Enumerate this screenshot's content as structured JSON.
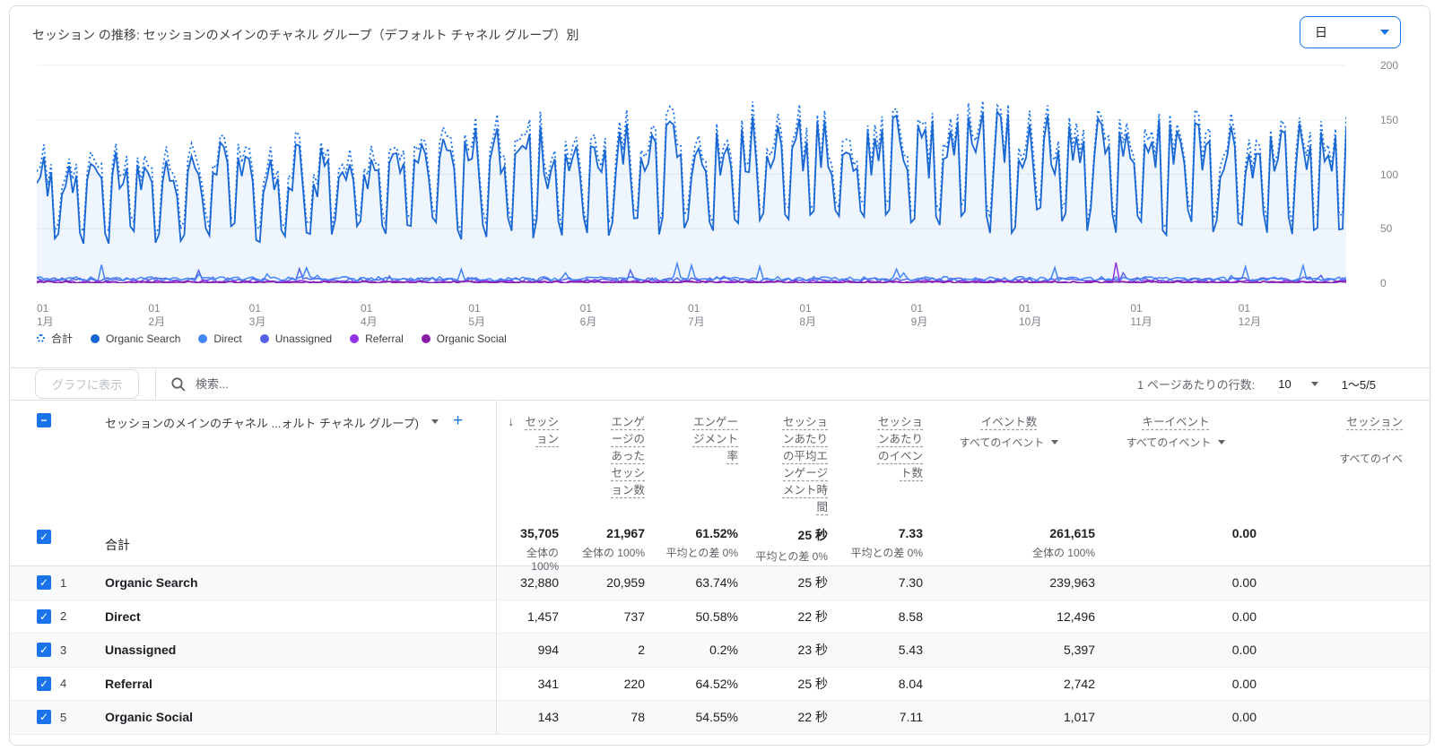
{
  "header": {
    "title": "セッション の推移: セッションのメインのチャネル グループ（デフォルト チャネル グループ）別",
    "granularity_value": "日"
  },
  "chart_data": {
    "type": "line",
    "title": "セッション の推移: セッションのメインのチャネル グループ（デフォルト チャネル グループ）別",
    "ylim": [
      0,
      200
    ],
    "y_ticks": [
      200,
      150,
      100,
      50,
      0
    ],
    "x_ticks": [
      {
        "day": "01",
        "month": "1月"
      },
      {
        "day": "01",
        "month": "2月"
      },
      {
        "day": "01",
        "month": "3月"
      },
      {
        "day": "01",
        "month": "4月"
      },
      {
        "day": "01",
        "month": "5月"
      },
      {
        "day": "01",
        "month": "6月"
      },
      {
        "day": "01",
        "month": "7月"
      },
      {
        "day": "01",
        "month": "8月"
      },
      {
        "day": "01",
        "month": "9月"
      },
      {
        "day": "01",
        "month": "10月"
      },
      {
        "day": "01",
        "month": "11月"
      },
      {
        "day": "01",
        "month": "12月"
      }
    ],
    "x_month_start_days": [
      0,
      31,
      59,
      90,
      120,
      151,
      181,
      212,
      243,
      273,
      304,
      334
    ],
    "series": [
      {
        "name": "合計",
        "color": "#1a73e8",
        "style": "dotted"
      },
      {
        "name": "Organic Search",
        "color": "#1967d2",
        "style": "solid",
        "area_fill": "rgba(26,115,232,0.07)"
      },
      {
        "name": "Direct",
        "color": "#4285f4",
        "style": "solid"
      },
      {
        "name": "Unassigned",
        "color": "#5561e8",
        "style": "solid"
      },
      {
        "name": "Referral",
        "color": "#9334e6",
        "style": "solid"
      },
      {
        "name": "Organic Social",
        "color": "#8a1ca8",
        "style": "solid"
      }
    ],
    "gen": {
      "seed": 9,
      "days": 365,
      "start_dow": 0,
      "weekday_min": 78,
      "weekday_max": 128,
      "weekend_min": 38,
      "weekend_max": 60,
      "season_amp": 0.18,
      "total_offset_min": 5,
      "total_offset_max": 14,
      "direct_spike_day": 178,
      "direct_spike_val": 18,
      "referral_spike_day": 300,
      "referral_spike_val": 19
    }
  },
  "legend": [
    {
      "label": "合計",
      "type": "dotted",
      "color": "#1a73e8"
    },
    {
      "label": "Organic Search",
      "type": "solid",
      "color": "#1967d2"
    },
    {
      "label": "Direct",
      "type": "solid",
      "color": "#4285f4"
    },
    {
      "label": "Unassigned",
      "type": "solid",
      "color": "#5561e8"
    },
    {
      "label": "Referral",
      "type": "solid",
      "color": "#9334e6"
    },
    {
      "label": "Organic Social",
      "type": "solid",
      "color": "#8a1ca8"
    }
  ],
  "controls": {
    "show_on_chart": "グラフに表示",
    "search_placeholder": "検索...",
    "rows_per_page_label": "1 ページあたりの行数:",
    "rows_per_page": "10",
    "range": "1～5/5"
  },
  "table": {
    "dimension_header": "セッションのメインのチャネル ...ォルト チャネル グループ)",
    "columns": [
      {
        "label": "セッション",
        "align": "right",
        "sortable": true
      },
      {
        "label": "エンゲージのあったセッション数",
        "align": "right"
      },
      {
        "label": "エンゲージメント率",
        "align": "right"
      },
      {
        "label": "セッションあたりの平均エンゲージメント時間",
        "align": "right"
      },
      {
        "label": "セッションあたりのイベント数",
        "align": "right"
      },
      {
        "label": "イベント数",
        "sub": "すべてのイベント",
        "caret": true,
        "align": "center"
      },
      {
        "label": "キーイベント",
        "sub": "すべてのイベント",
        "caret": true,
        "align": "center"
      },
      {
        "label": "セッション",
        "sub": "すべてのイベ",
        "align": "last"
      }
    ],
    "totals": {
      "label": "合計",
      "cells": [
        {
          "v": "35,705",
          "s": "全体の 100%"
        },
        {
          "v": "21,967",
          "s": "全体の 100%"
        },
        {
          "v": "61.52%",
          "s": "平均との差 0%"
        },
        {
          "v": "25 秒",
          "s": "平均との差 0%"
        },
        {
          "v": "7.33",
          "s": "平均との差 0%"
        },
        {
          "v": "261,615",
          "s": "全体の 100%"
        },
        {
          "v": "0.00",
          "s": ""
        },
        {
          "v": "",
          "s": ""
        }
      ]
    },
    "rows": [
      {
        "num": "1",
        "name": "Organic Search",
        "cells": [
          "32,880",
          "20,959",
          "63.74%",
          "25 秒",
          "7.30",
          "239,963",
          "0.00",
          ""
        ]
      },
      {
        "num": "2",
        "name": "Direct",
        "cells": [
          "1,457",
          "737",
          "50.58%",
          "22 秒",
          "8.58",
          "12,496",
          "0.00",
          ""
        ]
      },
      {
        "num": "3",
        "name": "Unassigned",
        "cells": [
          "994",
          "2",
          "0.2%",
          "23 秒",
          "5.43",
          "5,397",
          "0.00",
          ""
        ]
      },
      {
        "num": "4",
        "name": "Referral",
        "cells": [
          "341",
          "220",
          "64.52%",
          "25 秒",
          "8.04",
          "2,742",
          "0.00",
          ""
        ]
      },
      {
        "num": "5",
        "name": "Organic Social",
        "cells": [
          "143",
          "78",
          "54.55%",
          "22 秒",
          "7.11",
          "1,017",
          "0.00",
          ""
        ]
      }
    ]
  }
}
